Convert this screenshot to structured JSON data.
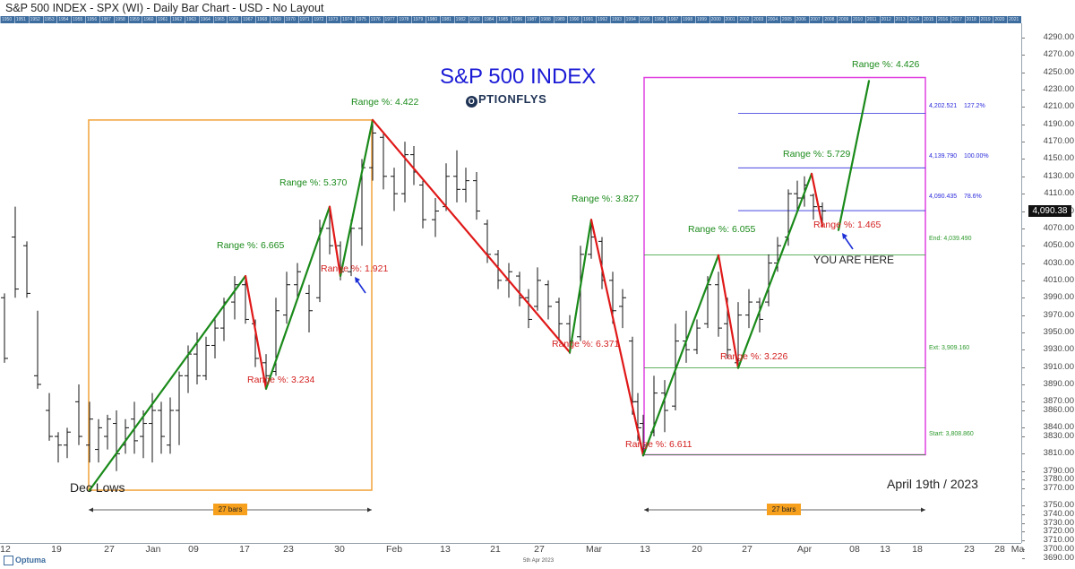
{
  "window": {
    "title": "S&P 500 INDEX - SPX (WI) - Daily Bar Chart - USD - No Layout"
  },
  "branding": {
    "chart_heading": "S&P 500 INDEX",
    "logo_text": "PTIONFLYS",
    "logo_letter": "O",
    "platform": "Optuma"
  },
  "chart_data": {
    "type": "bar",
    "title": "S&P 500 INDEX",
    "symbol": "SPX",
    "date_note": "April 19th / 2023",
    "last_price_label": "4,090.38",
    "last_price": 4090.38,
    "ylim": [
      3690,
      4300
    ],
    "y_ticks": [
      4290,
      4270,
      4250,
      4230,
      4210,
      4190,
      4170,
      4150,
      4130,
      4110,
      4090,
      4070,
      4050,
      4030,
      4010,
      3990,
      3970,
      3950,
      3930,
      3910,
      3890,
      3870,
      3860,
      3840,
      3830,
      3810,
      3790,
      3780,
      3770,
      3750,
      3740,
      3730,
      3720,
      3710,
      3700,
      3690
    ],
    "y_tick_labels": [
      "4290.00",
      "4270.00",
      "4250.00",
      "4230.00",
      "4210.00",
      "4190.00",
      "4170.00",
      "4150.00",
      "4130.00",
      "4110.00",
      "4090.00",
      "4070.00",
      "4050.00",
      "4030.00",
      "4010.00",
      "3990.00",
      "3970.00",
      "3950.00",
      "3930.00",
      "3910.00",
      "3890.00",
      "3870.00",
      "3860.00",
      "3840.00",
      "3830.00",
      "3810.00",
      "3790.00",
      "3780.00",
      "3770.00",
      "3750.00",
      "3740.00",
      "3730.00",
      "3720.00",
      "3710.00",
      "3700.00",
      "3690.00"
    ],
    "x_ticks": [
      "12",
      "19",
      "27",
      "Jan",
      "09",
      "17",
      "23",
      "30",
      "Feb",
      "13",
      "21",
      "27",
      "Mar",
      "13",
      "20",
      "27",
      "Apr",
      "08",
      "13",
      "18",
      "23",
      "28",
      "Ma"
    ],
    "x_footer": "5th Apr 2023",
    "year_strip": [
      "1950",
      "1951",
      "1952",
      "1953",
      "1954",
      "1955",
      "1956",
      "1957",
      "1958",
      "1959",
      "1960",
      "1961",
      "1962",
      "1963",
      "1964",
      "1965",
      "1966",
      "1967",
      "1968",
      "1969",
      "1970",
      "1971",
      "1972",
      "1973",
      "1974",
      "1975",
      "1976",
      "1977",
      "1978",
      "1979",
      "1980",
      "1981",
      "1982",
      "1983",
      "1984",
      "1985",
      "1986",
      "1987",
      "1988",
      "1989",
      "1990",
      "1991",
      "1992",
      "1993",
      "1994",
      "1995",
      "1996",
      "1997",
      "1998",
      "1999",
      "2000",
      "2001",
      "2002",
      "2003",
      "2004",
      "2005",
      "2006",
      "2007",
      "2008",
      "2009",
      "2010",
      "2011",
      "2012",
      "2013",
      "2014",
      "2015",
      "2016",
      "2017",
      "2018",
      "2019",
      "2020",
      "2021"
    ],
    "bars": [
      {
        "x": 5,
        "high": 3995,
        "low": 3915,
        "open": 3990,
        "close": 3920
      },
      {
        "x": 17,
        "high": 4095,
        "low": 3990,
        "open": 4060,
        "close": 4000
      },
      {
        "x": 30,
        "high": 4055,
        "low": 3990,
        "open": 4050,
        "close": 3995
      },
      {
        "x": 42,
        "high": 3975,
        "low": 3885,
        "open": 3900,
        "close": 3890
      },
      {
        "x": 55,
        "high": 3880,
        "low": 3825,
        "open": 3860,
        "close": 3830
      },
      {
        "x": 65,
        "high": 3835,
        "low": 3800,
        "open": 3830,
        "close": 3820
      },
      {
        "x": 75,
        "high": 3840,
        "low": 3805,
        "open": 3820,
        "close": 3835
      },
      {
        "x": 88,
        "high": 3890,
        "low": 3820,
        "open": 3870,
        "close": 3830
      },
      {
        "x": 100,
        "high": 3870,
        "low": 3800,
        "open": 3820,
        "close": 3850
      },
      {
        "x": 110,
        "high": 3850,
        "low": 3800,
        "open": 3815,
        "close": 3840
      },
      {
        "x": 120,
        "high": 3855,
        "low": 3815,
        "open": 3830,
        "close": 3850
      },
      {
        "x": 130,
        "high": 3860,
        "low": 3790,
        "open": 3845,
        "close": 3810
      },
      {
        "x": 140,
        "high": 3850,
        "low": 3810,
        "open": 3820,
        "close": 3840
      },
      {
        "x": 150,
        "high": 3870,
        "low": 3810,
        "open": 3850,
        "close": 3825
      },
      {
        "x": 160,
        "high": 3860,
        "low": 3805,
        "open": 3830,
        "close": 3845
      },
      {
        "x": 170,
        "high": 3880,
        "low": 3800,
        "open": 3845,
        "close": 3860
      },
      {
        "x": 180,
        "high": 3870,
        "low": 3810,
        "open": 3860,
        "close": 3830
      },
      {
        "x": 190,
        "high": 3875,
        "low": 3810,
        "open": 3820,
        "close": 3860
      },
      {
        "x": 200,
        "high": 3905,
        "low": 3820,
        "open": 3860,
        "close": 3900
      },
      {
        "x": 210,
        "high": 3935,
        "low": 3880,
        "open": 3900,
        "close": 3925
      },
      {
        "x": 220,
        "high": 3950,
        "low": 3890,
        "open": 3925,
        "close": 3900
      },
      {
        "x": 230,
        "high": 3945,
        "low": 3895,
        "open": 3900,
        "close": 3935
      },
      {
        "x": 240,
        "high": 3965,
        "low": 3920,
        "open": 3935,
        "close": 3955
      },
      {
        "x": 250,
        "high": 3990,
        "low": 3940,
        "open": 3955,
        "close": 3985
      },
      {
        "x": 262,
        "high": 4015,
        "low": 3965,
        "open": 3985,
        "close": 4005
      },
      {
        "x": 274,
        "high": 4015,
        "low": 3960,
        "open": 4005,
        "close": 3965
      },
      {
        "x": 285,
        "high": 3965,
        "low": 3910,
        "open": 3960,
        "close": 3920
      },
      {
        "x": 297,
        "high": 3925,
        "low": 3890,
        "open": 3915,
        "close": 3900
      },
      {
        "x": 308,
        "high": 3990,
        "low": 3900,
        "open": 3905,
        "close": 3975
      },
      {
        "x": 320,
        "high": 4020,
        "low": 3960,
        "open": 3970,
        "close": 4005
      },
      {
        "x": 332,
        "high": 4030,
        "low": 3990,
        "open": 4005,
        "close": 4020
      },
      {
        "x": 345,
        "high": 4005,
        "low": 3950,
        "open": 3995,
        "close": 3975
      },
      {
        "x": 357,
        "high": 4080,
        "low": 3985,
        "open": 3990,
        "close": 4070
      },
      {
        "x": 368,
        "high": 4095,
        "low": 4040,
        "open": 4070,
        "close": 4050
      },
      {
        "x": 380,
        "high": 4055,
        "low": 4010,
        "open": 4050,
        "close": 4020
      },
      {
        "x": 392,
        "high": 4080,
        "low": 4015,
        "open": 4020,
        "close": 4070
      },
      {
        "x": 404,
        "high": 4150,
        "low": 4050,
        "open": 4070,
        "close": 4140
      },
      {
        "x": 416,
        "high": 4195,
        "low": 4125,
        "open": 4140,
        "close": 4180
      },
      {
        "x": 428,
        "high": 4180,
        "low": 4115,
        "open": 4175,
        "close": 4130
      },
      {
        "x": 440,
        "high": 4140,
        "low": 4090,
        "open": 4130,
        "close": 4110
      },
      {
        "x": 452,
        "high": 4170,
        "low": 4100,
        "open": 4110,
        "close": 4155
      },
      {
        "x": 462,
        "high": 4165,
        "low": 4120,
        "open": 4155,
        "close": 4135
      },
      {
        "x": 472,
        "high": 4125,
        "low": 4070,
        "open": 4120,
        "close": 4080
      },
      {
        "x": 486,
        "high": 4105,
        "low": 4060,
        "open": 4080,
        "close": 4090
      },
      {
        "x": 498,
        "high": 4145,
        "low": 4090,
        "open": 4095,
        "close": 4130
      },
      {
        "x": 510,
        "high": 4160,
        "low": 4100,
        "open": 4130,
        "close": 4115
      },
      {
        "x": 520,
        "high": 4140,
        "low": 4100,
        "open": 4115,
        "close": 4125
      },
      {
        "x": 532,
        "high": 4135,
        "low": 4080,
        "open": 4125,
        "close": 4090
      },
      {
        "x": 544,
        "high": 4080,
        "low": 4030,
        "open": 4075,
        "close": 4040
      },
      {
        "x": 556,
        "high": 4045,
        "low": 4000,
        "open": 4040,
        "close": 4010
      },
      {
        "x": 568,
        "high": 4030,
        "low": 3990,
        "open": 4010,
        "close": 4020
      },
      {
        "x": 580,
        "high": 4020,
        "low": 3980,
        "open": 4015,
        "close": 3990
      },
      {
        "x": 590,
        "high": 4000,
        "low": 3955,
        "open": 3990,
        "close": 3965
      },
      {
        "x": 600,
        "high": 4025,
        "low": 3975,
        "open": 3980,
        "close": 4010
      },
      {
        "x": 612,
        "high": 4010,
        "low": 3965,
        "open": 4005,
        "close": 3980
      },
      {
        "x": 624,
        "high": 3990,
        "low": 3940,
        "open": 3985,
        "close": 3960
      },
      {
        "x": 636,
        "high": 3970,
        "low": 3925,
        "open": 3960,
        "close": 3940
      },
      {
        "x": 648,
        "high": 4050,
        "low": 3940,
        "open": 3945,
        "close": 4040
      },
      {
        "x": 660,
        "high": 4080,
        "low": 4035,
        "open": 4040,
        "close": 4060
      },
      {
        "x": 672,
        "high": 4060,
        "low": 4000,
        "open": 4055,
        "close": 4010
      },
      {
        "x": 684,
        "high": 4020,
        "low": 3960,
        "open": 4010,
        "close": 3975
      },
      {
        "x": 695,
        "high": 4000,
        "low": 3955,
        "open": 3980,
        "close": 3990
      },
      {
        "x": 706,
        "high": 3945,
        "low": 3855,
        "open": 3940,
        "close": 3870
      },
      {
        "x": 712,
        "high": 3880,
        "low": 3825,
        "open": 3870,
        "close": 3840
      },
      {
        "x": 718,
        "high": 3855,
        "low": 3808,
        "open": 3845,
        "close": 3820
      },
      {
        "x": 730,
        "high": 3900,
        "low": 3830,
        "open": 3835,
        "close": 3880
      },
      {
        "x": 742,
        "high": 3895,
        "low": 3835,
        "open": 3880,
        "close": 3860
      },
      {
        "x": 754,
        "high": 3960,
        "low": 3860,
        "open": 3865,
        "close": 3940
      },
      {
        "x": 766,
        "high": 3975,
        "low": 3915,
        "open": 3940,
        "close": 3930
      },
      {
        "x": 778,
        "high": 3965,
        "low": 3925,
        "open": 3930,
        "close": 3955
      },
      {
        "x": 790,
        "high": 4015,
        "low": 3955,
        "open": 3960,
        "close": 4005
      },
      {
        "x": 802,
        "high": 4020,
        "low": 3945,
        "open": 4005,
        "close": 3955
      },
      {
        "x": 812,
        "high": 3990,
        "low": 3920,
        "open": 3960,
        "close": 3930
      },
      {
        "x": 824,
        "high": 3985,
        "low": 3910,
        "open": 3915,
        "close": 3970
      },
      {
        "x": 836,
        "high": 4000,
        "low": 3955,
        "open": 3970,
        "close": 3985
      },
      {
        "x": 848,
        "high": 3990,
        "low": 3950,
        "open": 3985,
        "close": 3965
      },
      {
        "x": 858,
        "high": 4040,
        "low": 3980,
        "open": 3985,
        "close": 4030
      },
      {
        "x": 868,
        "high": 4060,
        "low": 4020,
        "open": 4030,
        "close": 4050
      },
      {
        "x": 880,
        "high": 4115,
        "low": 4050,
        "open": 4060,
        "close": 4110
      },
      {
        "x": 890,
        "high": 4125,
        "low": 4090,
        "open": 4110,
        "close": 4105
      },
      {
        "x": 898,
        "high": 4130,
        "low": 4095,
        "open": 4105,
        "close": 4120
      },
      {
        "x": 908,
        "high": 4110,
        "low": 4080,
        "open": 4108,
        "close": 4095
      },
      {
        "x": 918,
        "high": 4100,
        "low": 4075,
        "open": 4095,
        "close": 4090
      }
    ],
    "wave_segments": [
      {
        "color": "green",
        "from": [
          100,
          3768
        ],
        "to": [
          274,
          4015
        ]
      },
      {
        "color": "red",
        "from": [
          274,
          4015
        ],
        "to": [
          297,
          3885
        ]
      },
      {
        "color": "green",
        "from": [
          297,
          3885
        ],
        "to": [
          368,
          4095
        ]
      },
      {
        "color": "red",
        "from": [
          368,
          4095
        ],
        "to": [
          380,
          4015
        ]
      },
      {
        "color": "green",
        "from": [
          380,
          4015
        ],
        "to": [
          416,
          4195
        ]
      },
      {
        "color": "red",
        "from": [
          416,
          4195
        ],
        "to": [
          636,
          3927
        ]
      },
      {
        "color": "green",
        "from": [
          636,
          3927
        ],
        "to": [
          660,
          4080
        ]
      },
      {
        "color": "red",
        "from": [
          660,
          4080
        ],
        "to": [
          718,
          3808
        ]
      },
      {
        "color": "green",
        "from": [
          718,
          3808
        ],
        "to": [
          802,
          4039
        ]
      },
      {
        "color": "red",
        "from": [
          802,
          4039
        ],
        "to": [
          824,
          3909
        ]
      },
      {
        "color": "green",
        "from": [
          824,
          3909
        ],
        "to": [
          906,
          4133
        ]
      },
      {
        "color": "red",
        "from": [
          906,
          4133
        ],
        "to": [
          918,
          4073
        ]
      },
      {
        "color": "green",
        "from": [
          936,
          4068
        ],
        "to": [
          970,
          4240
        ]
      }
    ],
    "annotations": [
      {
        "text": "Range %: 6.665",
        "color": "green"
      },
      {
        "text": "Range %: 3.234",
        "color": "red"
      },
      {
        "text": "Range %: 5.370",
        "color": "green"
      },
      {
        "text": "Range %: 1.921",
        "color": "red"
      },
      {
        "text": "Range %: 4.422",
        "color": "green"
      },
      {
        "text": "Range %: 6.371",
        "color": "red"
      },
      {
        "text": "Range %: 3.827",
        "color": "green"
      },
      {
        "text": "Range %: 6.611",
        "color": "red"
      },
      {
        "text": "Range %: 6.055",
        "color": "green"
      },
      {
        "text": "Range %: 3.226",
        "color": "red"
      },
      {
        "text": "Range %: 5.729",
        "color": "green"
      },
      {
        "text": "Range %: 1.465",
        "color": "red"
      },
      {
        "text": "Range %: 4.426",
        "color": "green"
      }
    ],
    "fib_levels": [
      {
        "price": 4202.521,
        "price_label": "4,202.521",
        "pct_label": "127.2%",
        "color": "blue"
      },
      {
        "price": 4139.79,
        "price_label": "4,139.790",
        "pct_label": "100.00%",
        "color": "blue"
      },
      {
        "price": 4090.435,
        "price_label": "4,090.435",
        "pct_label": "78.6%",
        "color": "blue"
      },
      {
        "price": 4039.49,
        "price_label": "End: 4,039.490",
        "pct_label": "",
        "color": "green"
      },
      {
        "price": 3909.16,
        "price_label": "Ext: 3,909.160",
        "pct_label": "",
        "color": "green"
      },
      {
        "price": 3808.86,
        "price_label": "Start: 3,808.860",
        "pct_label": "",
        "color": "green"
      }
    ],
    "boxes": [
      {
        "color": "orange",
        "range_label": "27 bars"
      },
      {
        "color": "magenta",
        "range_label": "27 bars"
      }
    ],
    "notes": {
      "dec_lows": "Dec Lows",
      "you_are_here": "YOU ARE HERE",
      "date": "April 19th / 2023"
    }
  },
  "colors": {
    "up_wave": "#1a8a1a",
    "down_wave": "#e01818",
    "orange_box": "#f2a23a",
    "magenta_box": "#e040e0",
    "fib_blue": "#2b2bdc",
    "fib_green": "#2e9a2e",
    "title_blue": "#1b1bd6",
    "arrow_blue": "#1c2fd6"
  }
}
